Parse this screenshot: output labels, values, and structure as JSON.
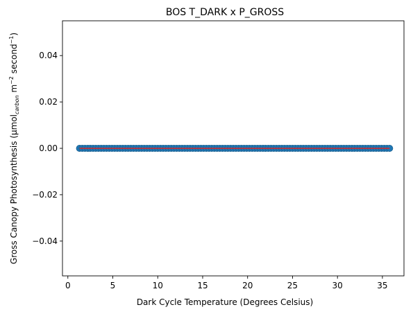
{
  "chart_data": {
    "type": "scatter",
    "title": "BOS T_DARK x P_GROSS",
    "xlabel": "Dark Cycle Temperature (Degrees Celsius)",
    "ylabel": {
      "prefix": "Gross Canopy Photosynthesis (μmol",
      "subscript": "carbon",
      "middle": " m",
      "sup1": "−2",
      "middle2": " second",
      "sup2": "−1",
      "suffix": ")"
    },
    "xlim": [
      -0.6,
      37.4
    ],
    "ylim": [
      -0.055,
      0.055
    ],
    "xticks": [
      0,
      5,
      10,
      15,
      20,
      25,
      30,
      35
    ],
    "xtick_labels": [
      "0",
      "5",
      "10",
      "15",
      "20",
      "25",
      "30",
      "35"
    ],
    "yticks": [
      0.04,
      0.02,
      0.0,
      -0.02,
      -0.04
    ],
    "ytick_labels": [
      "0.04",
      "0.02",
      "0.00",
      "−0.02",
      "−0.04"
    ],
    "series": [
      {
        "kind": "scatter",
        "x_range": [
          1.3,
          35.8
        ],
        "x_step": 0.3,
        "y": 0.0,
        "color": "#1f77b4",
        "edge_color": "#1a5f8f"
      },
      {
        "kind": "line",
        "x": [
          1.3,
          35.8
        ],
        "y": [
          0.0,
          0.0
        ],
        "color": "#d62728"
      }
    ],
    "grid": false
  }
}
